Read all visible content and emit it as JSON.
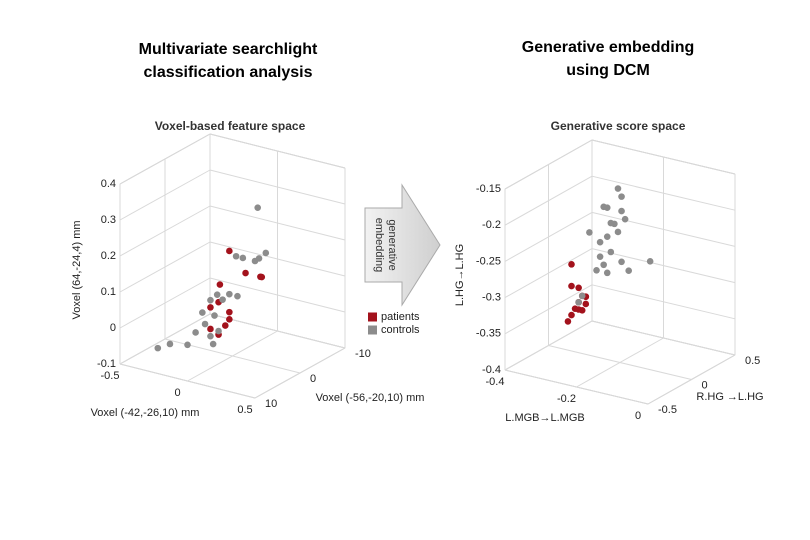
{
  "headings": [
    [
      "Multivariate searchlight",
      "classification analysis"
    ],
    [
      "Generative embedding",
      "using DCM"
    ]
  ],
  "arrow_label": [
    "generative",
    "embedding"
  ],
  "chart_data": [
    {
      "type": "scatter3d",
      "title": "Voxel-based feature space",
      "xlabel": "Voxel (-42,-26,10) mm",
      "ylabel": "Voxel (-56,-20,10) mm",
      "zlabel": "Voxel (64,-24,4) mm",
      "xlim": [
        -0.5,
        0.5
      ],
      "xticks": [
        -0.5,
        0,
        0.5
      ],
      "ylim": [
        10,
        -10
      ],
      "yticks": [
        -10,
        0,
        10
      ],
      "zlim": [
        -0.1,
        0.4
      ],
      "zticks": [
        -0.1,
        0,
        0.1,
        0.2,
        0.3,
        0.4
      ],
      "grid": true,
      "legend": "right",
      "series": [
        {
          "name": "patients",
          "color": "#a3121c",
          "x": [
            0.11,
            0.04,
            -0.03,
            0.03,
            0.11,
            0.11,
            0.03,
            -0.03,
            0.23,
            0.34,
            0.35,
            0.08
          ],
          "y": [
            4,
            4,
            4,
            4,
            4,
            4,
            4,
            4,
            4,
            4,
            4,
            4
          ],
          "z": [
            0.23,
            0.13,
            0.06,
            0.08,
            0.06,
            0.04,
            -0.01,
            0.0,
            0.18,
            0.18,
            0.18,
            0.02
          ]
        },
        {
          "name": "controls",
          "color": "#8c8c8c",
          "x": [
            -0.42,
            -0.33,
            -0.2,
            -0.14,
            -0.07,
            -0.03,
            -0.01,
            0.03,
            -0.09,
            0.0,
            0.06,
            0.11,
            0.17,
            0.02,
            -0.03,
            0.3,
            0.21,
            0.33,
            0.38,
            0.32,
            0.16
          ],
          "y": [
            4,
            4,
            4,
            4,
            4,
            4,
            4,
            4,
            4,
            4,
            4,
            4,
            4,
            4,
            4,
            4,
            4,
            4,
            4,
            4,
            4
          ],
          "z": [
            -0.09,
            -0.07,
            -0.06,
            -0.02,
            0.01,
            -0.02,
            -0.04,
            0.0,
            0.04,
            0.04,
            0.09,
            0.11,
            0.11,
            0.1,
            0.08,
            0.22,
            0.22,
            0.23,
            0.25,
            0.37,
            0.22
          ]
        }
      ]
    },
    {
      "type": "scatter3d",
      "title": "Generative score space",
      "xlabel": "L.MGB→L.MGB",
      "ylabel": "R.HG →L.HG",
      "zlabel": "L.HG→L.HG",
      "xlim": [
        -0.4,
        0
      ],
      "xticks": [
        -0.4,
        -0.2,
        0
      ],
      "ylim": [
        -0.5,
        0.5
      ],
      "yticks": [
        -0.5,
        0,
        0.5
      ],
      "zlim": [
        -0.4,
        -0.15
      ],
      "zticks": [
        -0.4,
        -0.35,
        -0.3,
        -0.25,
        -0.2,
        -0.15
      ],
      "grid": true,
      "series": [
        {
          "color": "#a3121c",
          "x": [
            -0.36,
            -0.36,
            -0.34,
            -0.33,
            -0.32,
            -0.34,
            -0.34,
            -0.32,
            -0.35,
            -0.33,
            -0.36,
            -0.37,
            -0.32
          ],
          "y": [
            0.1,
            0.1,
            0.1,
            0.1,
            0.1,
            0.1,
            0.1,
            0.1,
            0.1,
            0.1,
            0.1,
            0.1,
            0.1
          ],
          "z": [
            -0.29,
            -0.32,
            -0.32,
            -0.33,
            -0.33,
            -0.34,
            -0.35,
            -0.34,
            -0.35,
            -0.35,
            -0.36,
            -0.37,
            -0.33
          ]
        },
        {
          "color": "#8c8c8c",
          "x": [
            -0.23,
            -0.22,
            -0.26,
            -0.22,
            -0.21,
            -0.24,
            -0.23,
            -0.25,
            -0.26,
            -0.28,
            -0.31,
            -0.25,
            -0.28,
            -0.27,
            -0.22,
            -0.2,
            -0.29,
            -0.26,
            -0.14,
            -0.33,
            -0.34,
            -0.27
          ],
          "y": [
            0.1,
            0.1,
            0.1,
            0.1,
            0.1,
            0.1,
            0.1,
            0.1,
            0.1,
            0.1,
            0.1,
            0.1,
            0.1,
            0.1,
            0.1,
            0.1,
            0.1,
            0.1,
            0.1,
            0.1,
            0.1,
            0.1
          ],
          "z": [
            -0.17,
            -0.18,
            -0.2,
            -0.2,
            -0.21,
            -0.22,
            -0.23,
            -0.22,
            -0.24,
            -0.25,
            -0.24,
            -0.26,
            -0.27,
            -0.28,
            -0.27,
            -0.28,
            -0.29,
            -0.29,
            -0.26,
            -0.33,
            -0.34,
            -0.2
          ]
        }
      ]
    }
  ]
}
